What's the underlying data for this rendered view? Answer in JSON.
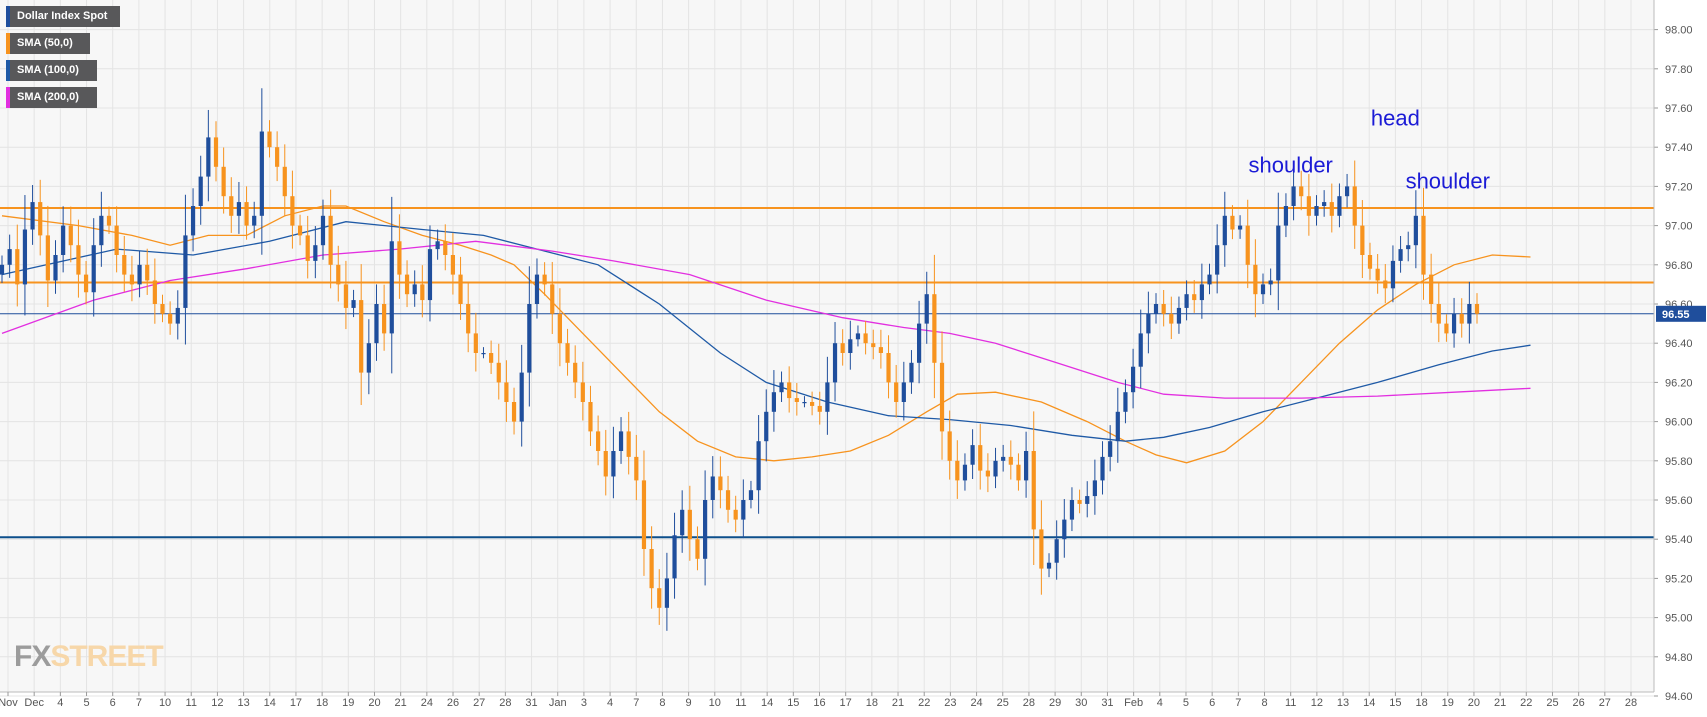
{
  "colors": {
    "background": "#f7f7f7",
    "grid": "#e4e4e4",
    "bullish": "#1f4e9c",
    "bearish": "#f7931e",
    "sma50": "#f7931e",
    "sma100": "#1f5aa6",
    "sma200": "#e22fe0",
    "resistance": "#f7931e",
    "support": "#0d4f8b",
    "annotation": "#1b1bd6",
    "price_tag": "#1f4e9c"
  },
  "legend": [
    {
      "label": "Dollar Index Spot",
      "color": "#1f4e9c"
    },
    {
      "label": "SMA (50,0)",
      "color": "#f7931e"
    },
    {
      "label": "SMA (100,0)",
      "color": "#1f5aa6"
    },
    {
      "label": "SMA (200,0)",
      "color": "#e22fe0"
    }
  ],
  "watermark": {
    "part1": "FX",
    "part2": "STREET"
  },
  "chart_data": {
    "type": "candlestick",
    "instrument": "Dollar Index Spot",
    "ylim": [
      94.6,
      98.1
    ],
    "y_ticks": [
      "98.00",
      "97.80",
      "97.60",
      "97.40",
      "97.20",
      "97.00",
      "96.80",
      "96.60",
      "96.40",
      "96.20",
      "96.00",
      "95.80",
      "95.60",
      "95.40",
      "95.20",
      "95.00",
      "94.80",
      "94.60"
    ],
    "x_labels": [
      "Nov",
      "Dec",
      "4",
      "5",
      "6",
      "7",
      "10",
      "11",
      "12",
      "13",
      "14",
      "17",
      "18",
      "19",
      "20",
      "21",
      "24",
      "26",
      "27",
      "28",
      "31",
      "Jan",
      "3",
      "4",
      "7",
      "8",
      "9",
      "10",
      "11",
      "14",
      "15",
      "16",
      "17",
      "18",
      "21",
      "22",
      "23",
      "24",
      "25",
      "28",
      "29",
      "30",
      "31",
      "Feb",
      "4",
      "5",
      "6",
      "7",
      "8",
      "11",
      "12",
      "13",
      "14",
      "15",
      "18",
      "19",
      "20",
      "21",
      "22",
      "25",
      "26",
      "27",
      "28"
    ],
    "last_price": "96.55",
    "horizontal_levels": [
      {
        "kind": "resistance",
        "value": 97.09
      },
      {
        "kind": "resistance",
        "value": 96.71
      },
      {
        "kind": "current",
        "value": 96.55
      },
      {
        "kind": "support",
        "value": 95.41
      }
    ],
    "annotations": [
      {
        "text": "shoulder",
        "x_label": "11",
        "value": 97.27
      },
      {
        "text": "head",
        "x_label": "15",
        "value": 97.51
      },
      {
        "text": "shoulder",
        "x_label": "19",
        "value": 97.19
      }
    ],
    "close": [
      96.8,
      96.88,
      96.7,
      96.98,
      97.12,
      96.95,
      96.72,
      96.85,
      97.0,
      96.9,
      96.75,
      96.66,
      96.9,
      97.05,
      97.0,
      96.85,
      96.75,
      96.7,
      96.8,
      96.72,
      96.6,
      96.55,
      96.5,
      96.58,
      96.95,
      97.1,
      97.25,
      97.45,
      97.3,
      97.15,
      97.05,
      97.12,
      97.0,
      97.05,
      97.48,
      97.4,
      97.3,
      97.15,
      97.0,
      96.95,
      96.82,
      96.9,
      97.05,
      96.8,
      96.7,
      96.58,
      96.62,
      96.25,
      96.4,
      96.6,
      96.45,
      96.92,
      96.75,
      96.65,
      96.7,
      96.62,
      96.88,
      96.92,
      96.85,
      96.75,
      96.6,
      96.45,
      96.35,
      96.35,
      96.3,
      96.2,
      96.1,
      96.0,
      96.25,
      96.6,
      96.75,
      96.7,
      96.55,
      96.4,
      96.3,
      96.2,
      96.1,
      95.95,
      95.85,
      95.72,
      95.85,
      95.95,
      95.82,
      95.7,
      95.35,
      95.15,
      95.05,
      95.2,
      95.42,
      95.55,
      95.4,
      95.3,
      95.6,
      95.72,
      95.65,
      95.55,
      95.5,
      95.6,
      95.65,
      95.9,
      96.05,
      96.15,
      96.2,
      96.12,
      96.1,
      96.1,
      96.08,
      96.05,
      96.2,
      96.4,
      96.35,
      96.42,
      96.45,
      96.4,
      96.38,
      96.35,
      96.2,
      96.1,
      96.2,
      96.3,
      96.5,
      96.65,
      96.3,
      95.95,
      95.8,
      95.7,
      95.78,
      95.88,
      95.75,
      95.72,
      95.8,
      95.82,
      95.78,
      95.7,
      95.85,
      95.45,
      95.25,
      95.28,
      95.4,
      95.5,
      95.6,
      95.58,
      95.62,
      95.7,
      95.82,
      95.9,
      96.05,
      96.15,
      96.28,
      96.45,
      96.55,
      96.6,
      96.55,
      96.5,
      96.58,
      96.65,
      96.62,
      96.7,
      96.75,
      96.9,
      97.05,
      96.98,
      97.0,
      96.8,
      96.65,
      96.7,
      96.72,
      97.0,
      97.1,
      97.2,
      97.15,
      97.05,
      97.1,
      97.12,
      97.05,
      97.15,
      97.2,
      97.0,
      96.85,
      96.78,
      96.72,
      96.68,
      96.82,
      96.88,
      96.9,
      97.05,
      96.75,
      96.6,
      96.5,
      96.45,
      96.55,
      96.5,
      96.6,
      96.55
    ],
    "series": [
      {
        "name": "SMA (50,0)",
        "points": [
          [
            0,
            97.05
          ],
          [
            10,
            97.0
          ],
          [
            17,
            96.95
          ],
          [
            22,
            96.9
          ],
          [
            27,
            96.95
          ],
          [
            32,
            96.95
          ],
          [
            37,
            97.05
          ],
          [
            42,
            97.1
          ],
          [
            45,
            97.1
          ],
          [
            50,
            97.02
          ],
          [
            55,
            96.95
          ],
          [
            60,
            96.9
          ],
          [
            64,
            96.85
          ],
          [
            67,
            96.8
          ],
          [
            71,
            96.65
          ],
          [
            76,
            96.45
          ],
          [
            81,
            96.25
          ],
          [
            86,
            96.05
          ],
          [
            91,
            95.9
          ],
          [
            96,
            95.82
          ],
          [
            101,
            95.8
          ],
          [
            106,
            95.82
          ],
          [
            111,
            95.85
          ],
          [
            116,
            95.93
          ],
          [
            121,
            96.05
          ],
          [
            125,
            96.14
          ],
          [
            130,
            96.15
          ],
          [
            136,
            96.1
          ],
          [
            142,
            96.0
          ],
          [
            147,
            95.9
          ],
          [
            151,
            95.83
          ],
          [
            155,
            95.79
          ],
          [
            160,
            95.85
          ],
          [
            165,
            96.0
          ],
          [
            170,
            96.2
          ],
          [
            175,
            96.4
          ],
          [
            180,
            96.57
          ],
          [
            185,
            96.7
          ],
          [
            190,
            96.8
          ],
          [
            195,
            96.85
          ],
          [
            200,
            96.84
          ]
        ]
      },
      {
        "name": "SMA (100,0)",
        "points": [
          [
            0,
            96.75
          ],
          [
            15,
            96.88
          ],
          [
            25,
            96.85
          ],
          [
            35,
            96.92
          ],
          [
            45,
            97.02
          ],
          [
            55,
            96.98
          ],
          [
            63,
            96.95
          ],
          [
            70,
            96.88
          ],
          [
            78,
            96.8
          ],
          [
            86,
            96.6
          ],
          [
            94,
            96.35
          ],
          [
            100,
            96.2
          ],
          [
            108,
            96.1
          ],
          [
            116,
            96.03
          ],
          [
            124,
            96.01
          ],
          [
            132,
            95.98
          ],
          [
            140,
            95.93
          ],
          [
            147,
            95.9
          ],
          [
            152,
            95.92
          ],
          [
            158,
            95.97
          ],
          [
            165,
            96.05
          ],
          [
            172,
            96.12
          ],
          [
            180,
            96.2
          ],
          [
            188,
            96.29
          ],
          [
            195,
            96.36
          ],
          [
            200,
            96.39
          ]
        ]
      },
      {
        "name": "SMA (200,0)",
        "points": [
          [
            0,
            96.45
          ],
          [
            12,
            96.62
          ],
          [
            22,
            96.72
          ],
          [
            32,
            96.78
          ],
          [
            42,
            96.85
          ],
          [
            52,
            96.88
          ],
          [
            62,
            96.92
          ],
          [
            72,
            96.87
          ],
          [
            80,
            96.82
          ],
          [
            90,
            96.75
          ],
          [
            100,
            96.62
          ],
          [
            110,
            96.53
          ],
          [
            118,
            96.48
          ],
          [
            124,
            96.45
          ],
          [
            130,
            96.4
          ],
          [
            138,
            96.3
          ],
          [
            146,
            96.2
          ],
          [
            152,
            96.14
          ],
          [
            160,
            96.12
          ],
          [
            170,
            96.12
          ],
          [
            180,
            96.13
          ],
          [
            190,
            96.15
          ],
          [
            200,
            96.17
          ]
        ]
      }
    ]
  }
}
